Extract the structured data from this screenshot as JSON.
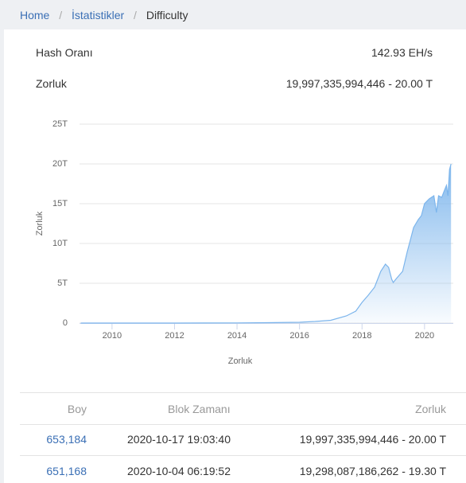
{
  "breadcrumb": {
    "items": [
      "Home",
      "İstatistikler",
      "Difficulty"
    ]
  },
  "stats": [
    {
      "label": "Hash Oranı",
      "value": "142.93 EH/s"
    },
    {
      "label": "Zorluk",
      "value": "19,997,335,994,446 - 20.00 T"
    }
  ],
  "chart_data": {
    "type": "area",
    "x_label": "Zorluk",
    "y_label": "Zorluk",
    "color": "#7cb5ec",
    "grid": true,
    "x": [
      2009,
      2012,
      2014,
      2015,
      2016,
      2016.5,
      2017,
      2017.5,
      2017.8,
      2018,
      2018.2,
      2018.4,
      2018.6,
      2018.75,
      2018.85,
      2018.95,
      2019,
      2019.1,
      2019.3,
      2019.45,
      2019.55,
      2019.65,
      2019.8,
      2019.9,
      2020,
      2020.15,
      2020.3,
      2020.38,
      2020.45,
      2020.55,
      2020.62,
      2020.7,
      2020.75,
      2020.8,
      2020.85
    ],
    "values": [
      0,
      0.002,
      0.02,
      0.05,
      0.1,
      0.2,
      0.35,
      0.9,
      1.5,
      2.6,
      3.5,
      4.5,
      6.5,
      7.4,
      7,
      5.5,
      5.1,
      5.6,
      6.5,
      9,
      10.5,
      12,
      13,
      13.5,
      15,
      15.6,
      16,
      13.9,
      16,
      15.8,
      16.5,
      17.3,
      16,
      19.3,
      20
    ],
    "xlim": [
      2008.96,
      2020.92
    ],
    "ylim": [
      0,
      25
    ],
    "xticks": [
      2010,
      2012,
      2014,
      2016,
      2018,
      2020
    ],
    "yticks": [
      0,
      {
        "value": 5,
        "label": "5T"
      },
      {
        "value": 10,
        "label": "10T"
      },
      {
        "value": 15,
        "label": "15T"
      },
      {
        "value": 20,
        "label": "20T"
      },
      {
        "value": 25,
        "label": "25T"
      }
    ]
  },
  "table": {
    "header": [
      "Boy",
      "Blok Zamanı",
      "Zorluk"
    ],
    "rows": [
      [
        "653,184",
        "2020-10-17 19:03:40",
        "19,997,335,994,446 - 20.00 T"
      ],
      [
        "651,168",
        "2020-10-04 06:19:52",
        "19,298,087,186,262 - 19.30 T"
      ]
    ]
  }
}
